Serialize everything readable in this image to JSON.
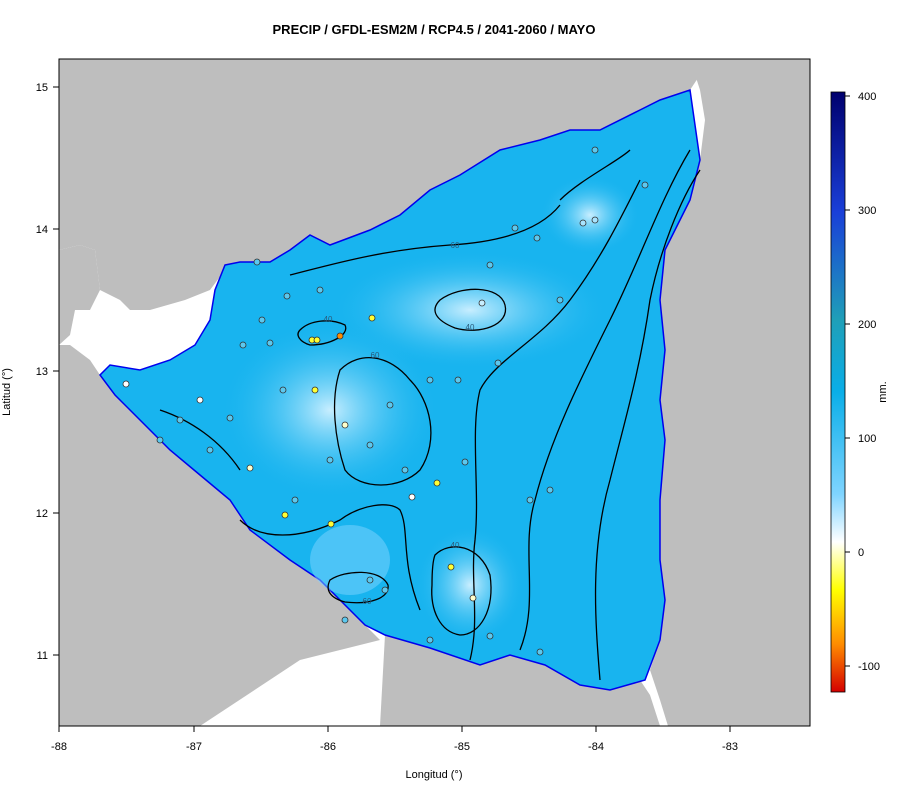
{
  "title": "PRECIP / GFDL-ESM2M / RCP4.5 / 2041-2060 / MAYO",
  "axes": {
    "xlabel": "Longitud (°)",
    "ylabel": "Latitud (°)",
    "xticks": [
      "-88",
      "-87",
      "-86",
      "-85",
      "-84",
      "-83"
    ],
    "yticks": [
      "11",
      "12",
      "13",
      "14",
      "15"
    ]
  },
  "colorbar": {
    "unit": "mm.",
    "ticks": [
      "-100",
      "0",
      "100",
      "200",
      "300",
      "400"
    ],
    "colors": [
      "#d40000",
      "#ff8c00",
      "#ffff00",
      "#ffffff",
      "#7fd4ff",
      "#0aaee8",
      "#1f9fb8",
      "#1a3fd8",
      "#00006e"
    ]
  },
  "contour_labels": [
    "40",
    "60",
    "60",
    "40",
    "40",
    "60",
    "40",
    "60"
  ],
  "colors": {
    "land_outside": "#bebebe",
    "sea": "#ffffff",
    "country_fill": "#18b4ef",
    "coastline": "#0000ee",
    "border": "#000000"
  }
}
